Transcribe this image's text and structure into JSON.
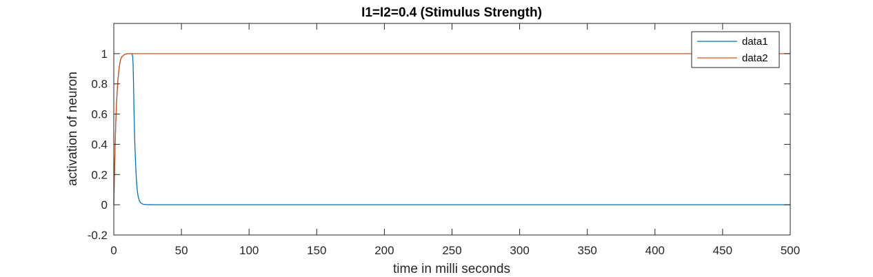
{
  "chart_data": {
    "type": "line",
    "title": "I1=I2=0.4 (Stimulus Strength)",
    "xlabel": "time in milli seconds",
    "ylabel": "activation of neuron",
    "xlim": [
      0,
      500
    ],
    "ylim": [
      -0.2,
      1.2
    ],
    "xticks": [
      0,
      50,
      100,
      150,
      200,
      250,
      300,
      350,
      400,
      450,
      500
    ],
    "yticks": [
      -0.2,
      0,
      0.2,
      0.4,
      0.6,
      0.8,
      1
    ],
    "xtick_labels": [
      "0",
      "50",
      "100",
      "150",
      "200",
      "250",
      "300",
      "350",
      "400",
      "450",
      "500"
    ],
    "ytick_labels": [
      "-0.2",
      "0",
      "0.2",
      "0.4",
      "0.6",
      "0.8",
      "1"
    ],
    "grid": false,
    "legend_position": "top-right",
    "series": [
      {
        "name": "data1",
        "color": "#0072BD",
        "x": [
          0,
          0.5,
          1,
          1.5,
          2,
          3,
          4,
          5,
          6,
          8,
          10,
          12,
          13.5,
          14,
          14.3,
          14.6,
          15,
          15.5,
          16,
          16.5,
          17,
          17.5,
          18,
          19,
          20,
          21,
          22,
          24,
          30,
          500
        ],
        "y": [
          0,
          0.2,
          0.4,
          0.55,
          0.67,
          0.82,
          0.91,
          0.96,
          0.98,
          0.995,
          1,
          1,
          1,
          0.98,
          0.92,
          0.8,
          0.6,
          0.42,
          0.3,
          0.2,
          0.13,
          0.085,
          0.055,
          0.025,
          0.012,
          0.006,
          0.003,
          0.001,
          0,
          0
        ]
      },
      {
        "name": "data2",
        "color": "#D95319",
        "x": [
          0,
          0.5,
          1,
          1.5,
          2,
          3,
          4,
          5,
          6,
          8,
          10,
          500
        ],
        "y": [
          0,
          0.2,
          0.4,
          0.55,
          0.67,
          0.82,
          0.91,
          0.96,
          0.98,
          0.995,
          1,
          1
        ]
      }
    ]
  }
}
